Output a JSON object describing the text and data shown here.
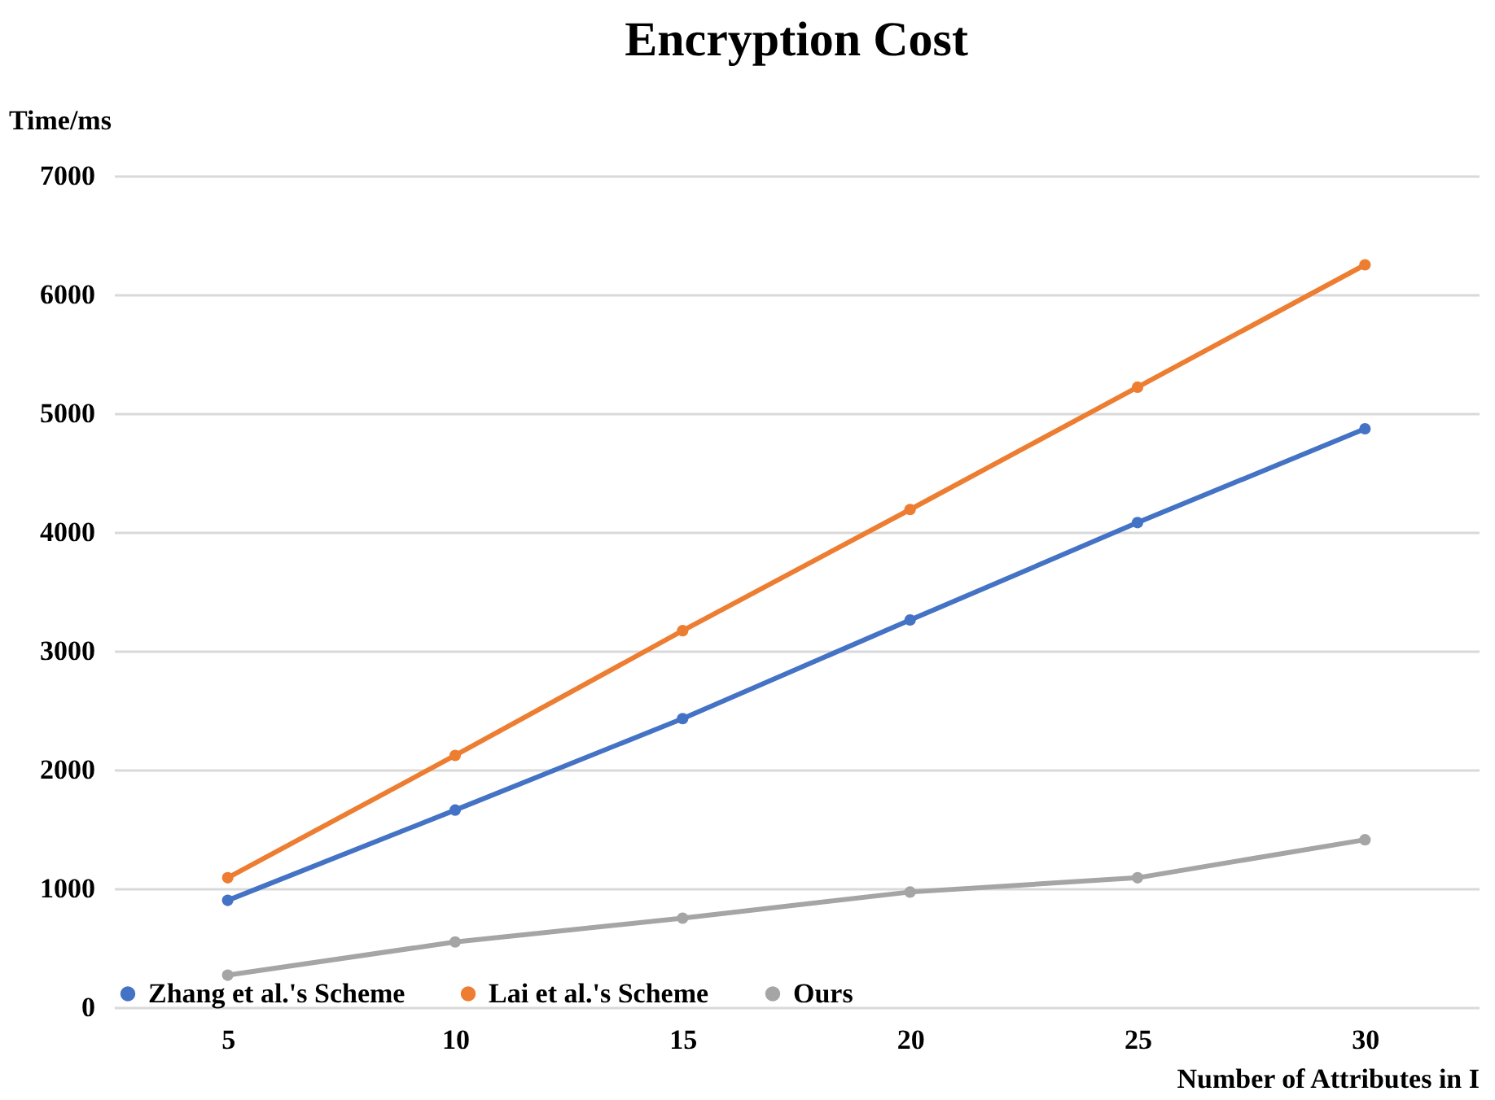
{
  "chart_data": {
    "type": "line",
    "title": "Encryption Cost",
    "xlabel": "Number of Attributes in I",
    "ylabel": "Time/ms",
    "categories": [
      "5",
      "10",
      "15",
      "20",
      "25",
      "30"
    ],
    "series": [
      {
        "name": "Zhang et al.'s Scheme",
        "color": "#4472c4",
        "values": [
          900,
          1660,
          2430,
          3260,
          4080,
          4870
        ]
      },
      {
        "name": "Lai et al.'s Scheme",
        "color": "#ed7d31",
        "values": [
          1090,
          2120,
          3170,
          4190,
          5220,
          6250
        ]
      },
      {
        "name": "Ours",
        "color": "#a5a5a5",
        "values": [
          270,
          550,
          750,
          970,
          1090,
          1410
        ]
      }
    ],
    "ylim": [
      0,
      7000
    ],
    "yticks": [
      0,
      1000,
      2000,
      3000,
      4000,
      5000,
      6000,
      7000
    ],
    "grid": "y",
    "legend": "bottom left",
    "marker": "circle",
    "line_style": "solid"
  }
}
